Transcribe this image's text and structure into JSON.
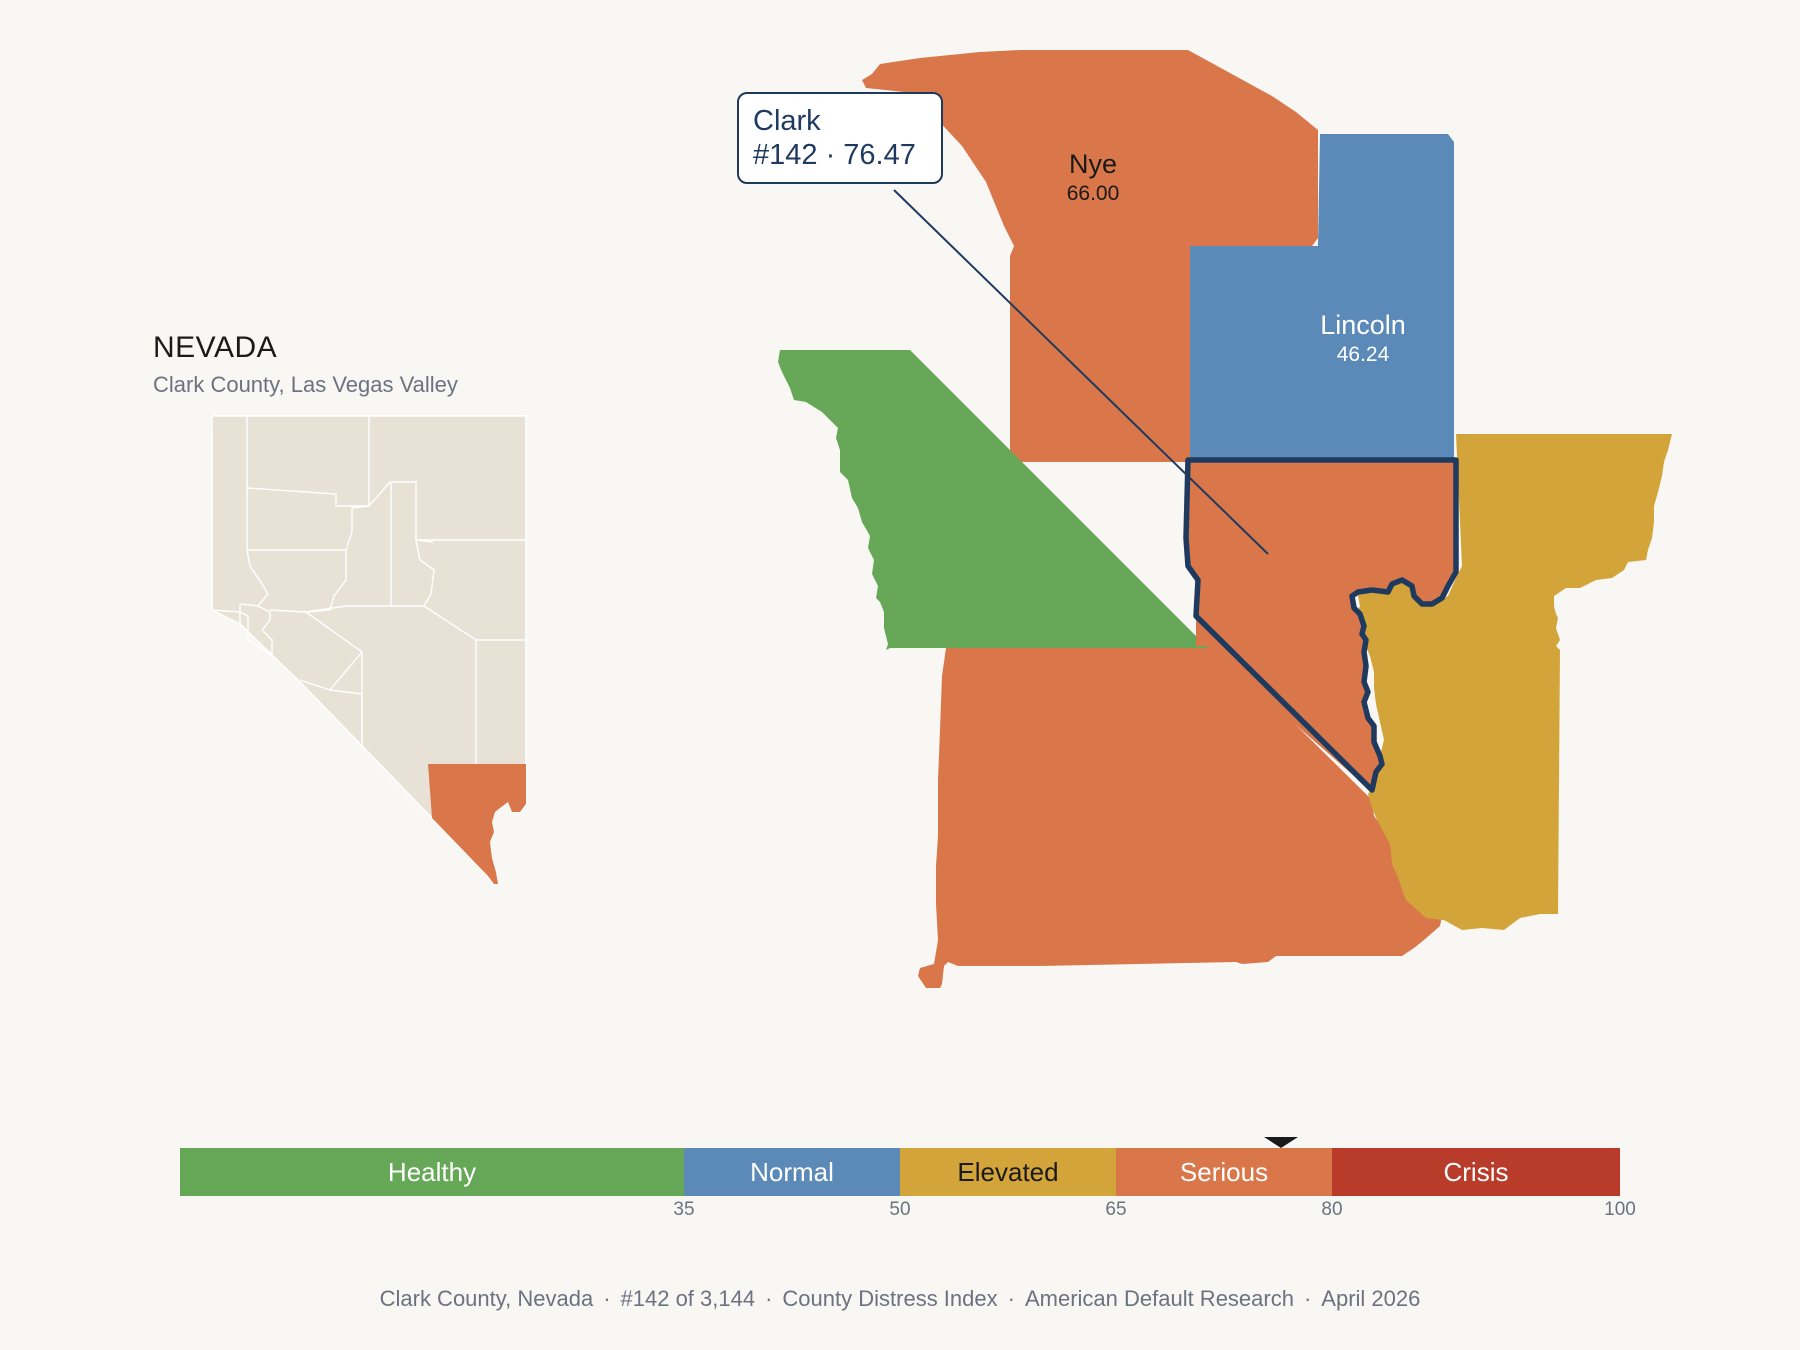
{
  "inset": {
    "title": "NEVADA",
    "subtitle": "Clark County, Las Vegas Valley",
    "base_fill": "#e8e2d6",
    "highlight_fill": "#d9774b"
  },
  "counties": {
    "nye": {
      "name": "Nye",
      "value": "66.00",
      "category": "Serious",
      "color": "#d9774b"
    },
    "lincoln": {
      "name": "Lincoln",
      "value": "46.24",
      "category": "Normal",
      "color": "#5b89b8"
    },
    "inyo": {
      "category": "Healthy",
      "color": "#67a758"
    },
    "san_bernardino": {
      "category": "Serious",
      "color": "#d9774b"
    },
    "mohave": {
      "category": "Elevated",
      "color": "#d3a43a"
    },
    "clark": {
      "category": "Serious",
      "color": "#d9774b",
      "outline_color": "#1f3a5f"
    }
  },
  "callout": {
    "county": "Clark",
    "rank_value": "#142 · 76.47"
  },
  "selected": {
    "value": 76.47
  },
  "scale": {
    "min": 0,
    "max": 100,
    "segments": [
      {
        "label": "Healthy",
        "from": 0,
        "to": 35,
        "color": "#67a758",
        "text_color": "#ffffff"
      },
      {
        "label": "Normal",
        "from": 35,
        "to": 50,
        "color": "#5b89b8",
        "text_color": "#ffffff"
      },
      {
        "label": "Elevated",
        "from": 50,
        "to": 65,
        "color": "#d3a43a",
        "text_color": "#1a1a1a"
      },
      {
        "label": "Serious",
        "from": 65,
        "to": 80,
        "color": "#d9774b",
        "text_color": "#ffffff"
      },
      {
        "label": "Crisis",
        "from": 80,
        "to": 100,
        "color": "#b93c2b",
        "text_color": "#ffffff"
      }
    ],
    "ticks": [
      "35",
      "50",
      "65",
      "80",
      "100"
    ]
  },
  "footer": {
    "county": "Clark County, Nevada",
    "rank": "#142 of 3,144",
    "index": "County Distress Index",
    "source": "American Default Research",
    "date": "April 2026",
    "separator": "·"
  }
}
